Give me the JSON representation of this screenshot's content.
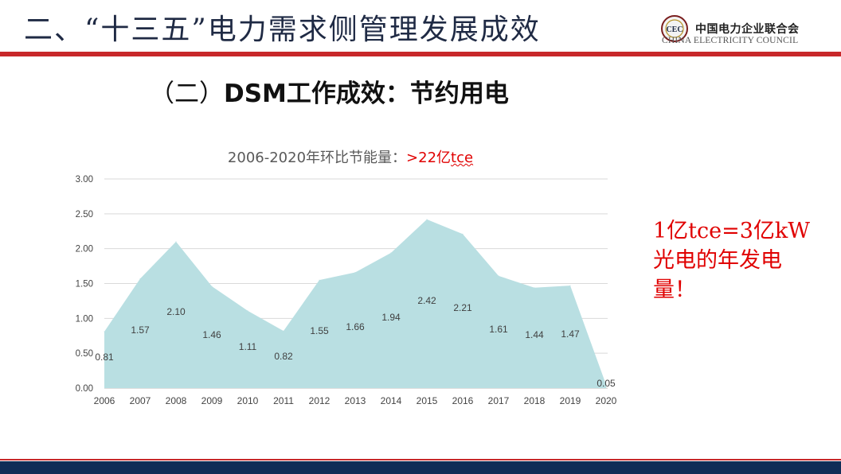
{
  "slide": {
    "title": "二、“十三五”电力需求侧管理发展成效",
    "subtitle_paren": "（二）",
    "subtitle_text": "DSM工作成效：节约用电"
  },
  "logo": {
    "cn": "中国电力企业联合会",
    "en": "CHINA ELECTRICITY COUNCIL",
    "mark_text": "CEC",
    "icon": "cec-emblem-icon"
  },
  "chart_title": {
    "prefix": "2006-2020年环比节能量：",
    "highlight_start": ">22",
    "highlight_mid": "亿",
    "highlight_end": "tce"
  },
  "note": {
    "line1": "1亿tce=3亿kW",
    "line2": "光电的年发电",
    "line3": "量！"
  },
  "colors": {
    "accent_red": "#c8282a",
    "highlight_red": "#e00000",
    "navy": "#0f2d57",
    "area_fill": "#b9dfe2"
  },
  "chart_data": {
    "type": "area",
    "title": "2006-2020年环比节能量：>22亿tce",
    "categories": [
      "2006",
      "2007",
      "2008",
      "2009",
      "2010",
      "2011",
      "2012",
      "2013",
      "2014",
      "2015",
      "2016",
      "2017",
      "2018",
      "2019",
      "2020"
    ],
    "values": [
      0.81,
      1.57,
      2.1,
      1.46,
      1.11,
      0.82,
      1.55,
      1.66,
      1.94,
      2.42,
      2.21,
      1.61,
      1.44,
      1.47,
      0.05
    ],
    "data_labels": [
      "0.81",
      "1.57",
      "2.10",
      "1.46",
      "1.11",
      "0.82",
      "1.55",
      "1.66",
      "1.94",
      "2.42",
      "2.21",
      "1.61",
      "1.44",
      "1.47",
      "0.05"
    ],
    "y_ticks": [
      "0.00",
      "0.50",
      "1.00",
      "1.50",
      "2.00",
      "2.50",
      "3.00"
    ],
    "ylim": [
      0,
      3
    ],
    "grid": true,
    "legend": "none"
  }
}
